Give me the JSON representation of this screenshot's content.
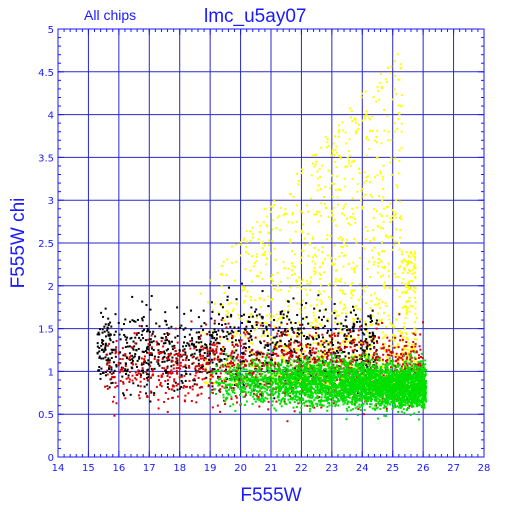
{
  "chart_data": {
    "type": "scatter",
    "title": "lmc_u5ay07",
    "subtitle": "All chips",
    "xlabel": "F555W",
    "ylabel": "F555W chi",
    "xlim": [
      14,
      28
    ],
    "ylim": [
      0,
      5
    ],
    "x_ticks": [
      "14",
      "15",
      "16",
      "17",
      "18",
      "19",
      "20",
      "21",
      "22",
      "23",
      "24",
      "25",
      "26",
      "27",
      "28"
    ],
    "y_ticks": [
      "0",
      "0.5",
      "1",
      "1.5",
      "2",
      "2.5",
      "3",
      "3.5",
      "4",
      "4.5",
      "5"
    ],
    "grid": true,
    "colors": {
      "axes": "#1a1aff",
      "grid": "#2828c8",
      "series": {
        "yellow": "#ffff00",
        "black": "#000000",
        "red": "#e00000",
        "green": "#00e000"
      }
    },
    "series_regions": [
      {
        "color": "yellow",
        "x_range": [
          18.6,
          25.8
        ],
        "y_range": [
          0.7,
          4.95
        ],
        "density": "sparse at high chi, rising toward faint end"
      },
      {
        "color": "black",
        "x_range": [
          15.3,
          24.5
        ],
        "y_range": [
          0.5,
          2.6
        ],
        "density": "dominant at bright end"
      },
      {
        "color": "red",
        "x_range": [
          15.5,
          26.0
        ],
        "y_range": [
          0.4,
          2.1
        ],
        "density": "spread through main locus"
      },
      {
        "color": "green",
        "x_range": [
          18.8,
          26.1
        ],
        "y_range": [
          0.4,
          1.8
        ],
        "density": "dense band near chi 0.8-1.0, faint end"
      }
    ]
  }
}
